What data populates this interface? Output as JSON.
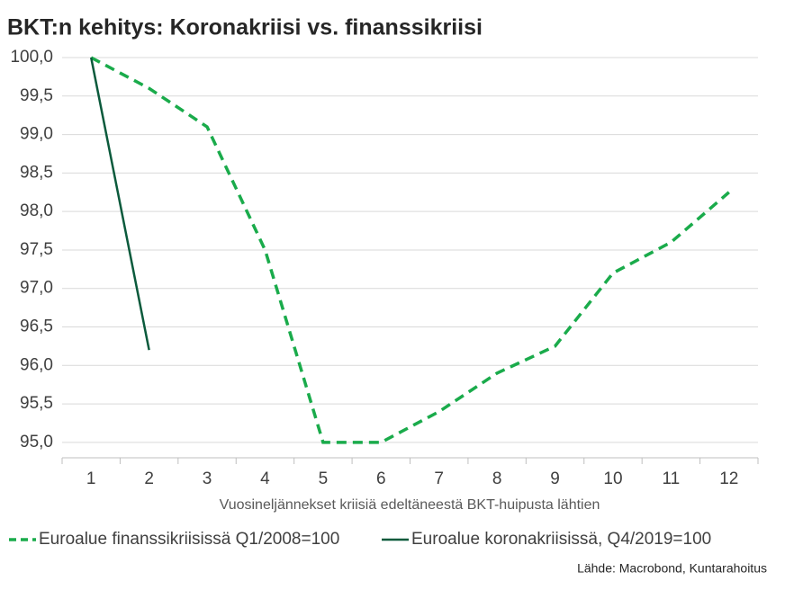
{
  "chart_data": {
    "type": "line",
    "title": "BKT:n kehitys: Koronakriisi vs. finanssikriisi",
    "x_label": "Vuosineljännekset kriisiä edeltäneestä BKT-huipusta lähtien",
    "source": "Lähde: Macrobond, Kuntarahoitus",
    "categories": [
      "1",
      "2",
      "3",
      "4",
      "5",
      "6",
      "7",
      "8",
      "9",
      "10",
      "11",
      "12"
    ],
    "series": [
      {
        "name": "Euroalue finanssikriisissä Q1/2008=100",
        "color": "#1aab4b",
        "dash": true,
        "values": [
          100,
          99.6,
          99.1,
          97.5,
          95.0,
          95.0,
          95.4,
          95.9,
          96.25,
          97.2,
          97.6,
          98.25
        ]
      },
      {
        "name": "Euroalue koronakriisissä, Q4/2019=100",
        "color": "#0b5a3c",
        "dash": false,
        "values": [
          100,
          96.2,
          null,
          null,
          null,
          null,
          null,
          null,
          null,
          null,
          null,
          null
        ]
      }
    ],
    "ylim": [
      94.8,
      100
    ],
    "yticks": [
      {
        "value": 95,
        "label": "95,0"
      },
      {
        "value": 95.5,
        "label": "95,5"
      },
      {
        "value": 96,
        "label": "96,0"
      },
      {
        "value": 96.5,
        "label": "96,5"
      },
      {
        "value": 97,
        "label": "97,0"
      },
      {
        "value": 97.5,
        "label": "97,5"
      },
      {
        "value": 98,
        "label": "98,0"
      },
      {
        "value": 98.5,
        "label": "98,5"
      },
      {
        "value": 99,
        "label": "99,0"
      },
      {
        "value": 99.5,
        "label": "99,5"
      },
      {
        "value": 100,
        "label": "100,0"
      }
    ],
    "grid": true
  }
}
